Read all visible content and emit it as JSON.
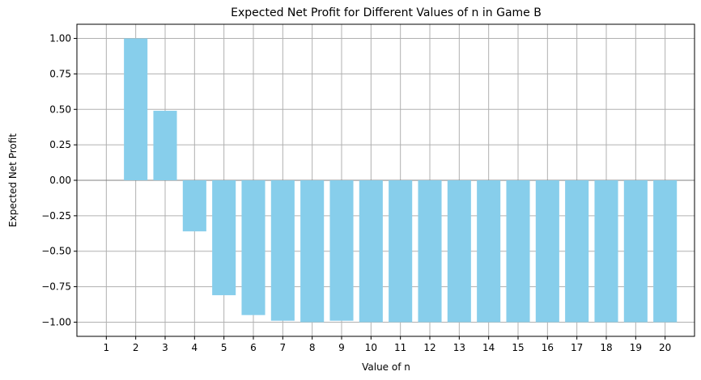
{
  "chart_data": {
    "type": "bar",
    "title": "Expected Net Profit for Different Values of n in Game B",
    "xlabel": "Value of n",
    "ylabel": "Expected Net Profit",
    "categories": [
      "1",
      "2",
      "3",
      "4",
      "5",
      "6",
      "7",
      "8",
      "9",
      "10",
      "11",
      "12",
      "13",
      "14",
      "15",
      "16",
      "17",
      "18",
      "19",
      "20"
    ],
    "values": [
      0.0,
      1.0,
      0.49,
      -0.36,
      -0.81,
      -0.95,
      -0.99,
      -1.0,
      -0.99,
      -1.0,
      -1.0,
      -1.0,
      -1.0,
      -1.0,
      -1.0,
      -1.0,
      -1.0,
      -1.0,
      -1.0,
      -1.0
    ],
    "ylim": [
      -1.1,
      1.1
    ],
    "yticks": [
      "−1.00",
      "−0.75",
      "−0.50",
      "−0.25",
      "0.00",
      "0.25",
      "0.50",
      "0.75",
      "1.00"
    ],
    "ytick_values": [
      -1.0,
      -0.75,
      -0.5,
      -0.25,
      0.0,
      0.25,
      0.5,
      0.75,
      1.0
    ],
    "grid": true,
    "bar_color": "#87CEEB",
    "zero_line": true
  }
}
